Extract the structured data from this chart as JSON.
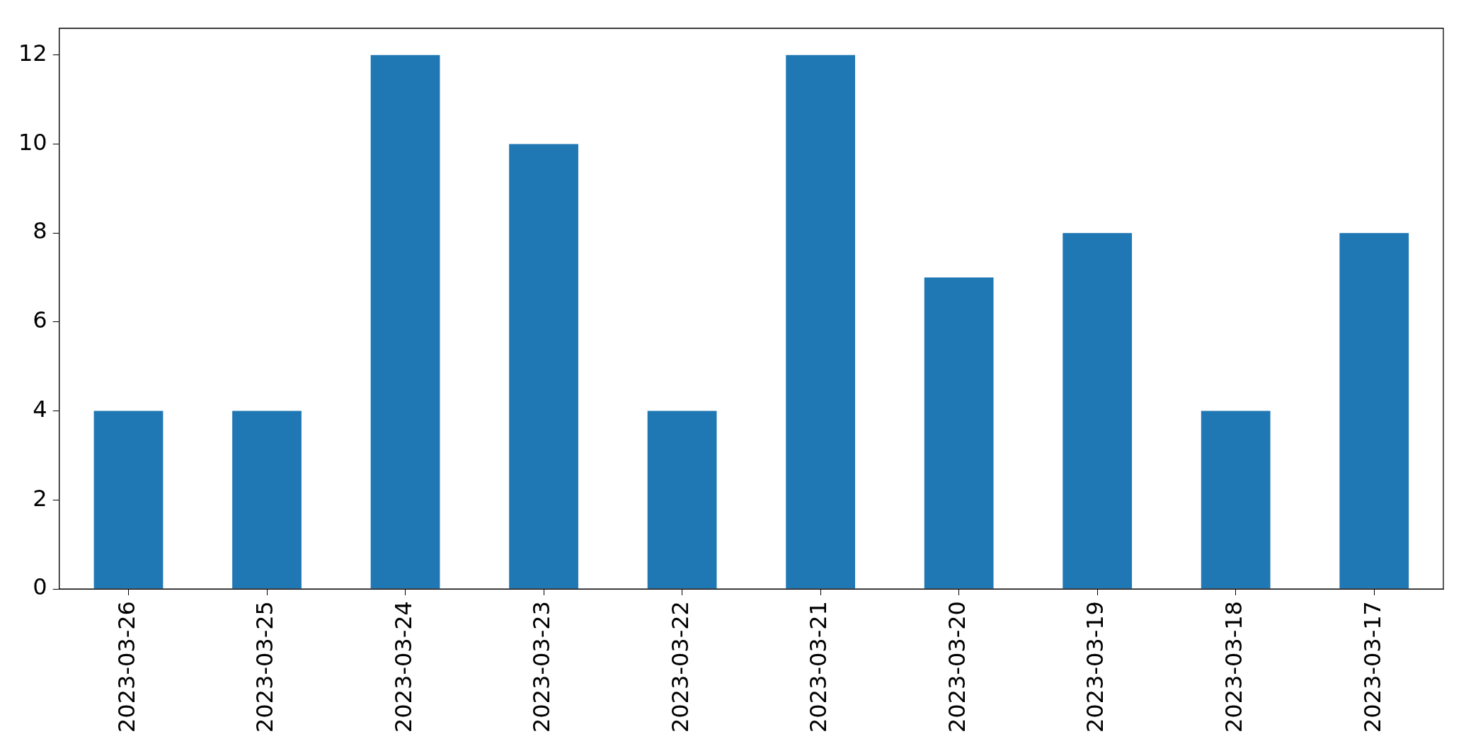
{
  "chart_data": {
    "type": "bar",
    "categories": [
      "2023-03-26",
      "2023-03-25",
      "2023-03-24",
      "2023-03-23",
      "2023-03-22",
      "2023-03-21",
      "2023-03-20",
      "2023-03-19",
      "2023-03-18",
      "2023-03-17"
    ],
    "values": [
      4,
      4,
      12,
      10,
      4,
      12,
      7,
      8,
      4,
      8
    ],
    "color": "#1f77b4",
    "ylim": [
      0,
      12.6
    ],
    "yticks": [
      0,
      2,
      4,
      6,
      8,
      10,
      12
    ],
    "grid": false,
    "legend": false
  }
}
